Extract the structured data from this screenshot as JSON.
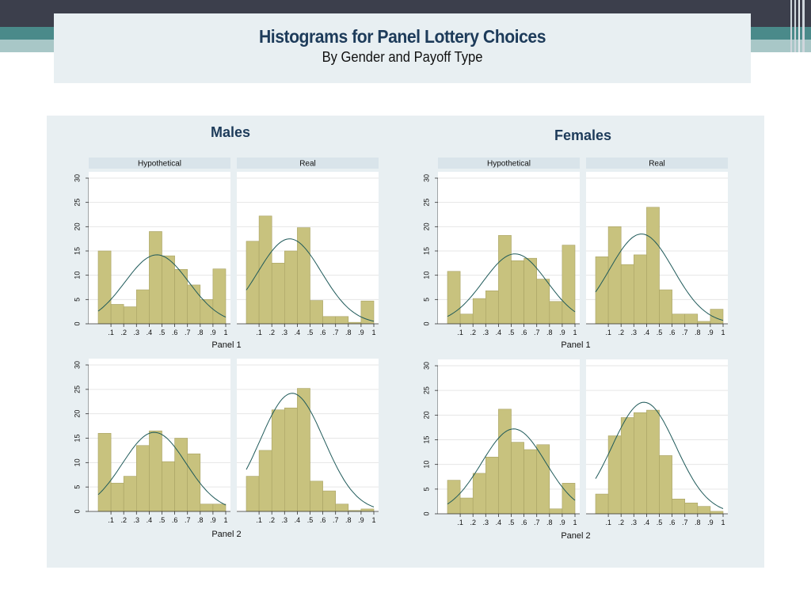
{
  "slide": {
    "title": "Histograms for Panel Lottery Choices",
    "subtitle": "By Gender and Payoff Type"
  },
  "colors": {
    "bar_fill": "#c8c27e",
    "bar_stroke": "#a8a264",
    "curve": "#1f5a5a",
    "strip": "#d9e4ea",
    "grid": "#e6e6e6"
  },
  "chart_data": [
    {
      "type": "bar",
      "title": "Males",
      "panels": [
        "Panel 1",
        "Panel 2"
      ],
      "strips": [
        "Hypothetical",
        "Real"
      ],
      "ylim": [
        0,
        30
      ],
      "yticks": [
        "0",
        "5",
        "10",
        "15",
        "20",
        "25",
        "30"
      ],
      "xticks": [
        ".1",
        ".2",
        ".3",
        ".4",
        ".5",
        ".6",
        ".7",
        ".8",
        ".9",
        "1"
      ],
      "histograms": [
        {
          "panel": "Panel 1",
          "type": "Hypothetical",
          "values": [
            15,
            4,
            3.5,
            7,
            19,
            14,
            11.2,
            8,
            5,
            11.3
          ],
          "normal": {
            "mean": 0.51,
            "peak": 14.2
          }
        },
        {
          "panel": "Panel 1",
          "type": "Real",
          "values": [
            17,
            22.2,
            12.5,
            15,
            19.8,
            4.8,
            1.5,
            1.5,
            0.3,
            4.7
          ],
          "normal": {
            "mean": 0.39,
            "peak": 17.5
          }
        },
        {
          "panel": "Panel 2",
          "type": "Hypothetical",
          "values": [
            16,
            5.8,
            7.2,
            13.5,
            16.5,
            10.2,
            15,
            11.8,
            1.5,
            1.5
          ],
          "normal": {
            "mean": 0.49,
            "peak": 16.2
          }
        },
        {
          "panel": "Panel 2",
          "type": "Real",
          "values": [
            7.2,
            12.5,
            20.8,
            21.2,
            25.2,
            6.2,
            4.2,
            1.5,
            0.2,
            0.5
          ],
          "normal": {
            "mean": 0.41,
            "peak": 24.2
          }
        }
      ]
    },
    {
      "type": "bar",
      "title": "Females",
      "panels": [
        "Panel 1",
        "Panel 2"
      ],
      "strips": [
        "Hypothetical",
        "Real"
      ],
      "ylim": [
        0,
        30
      ],
      "yticks": [
        "0",
        "5",
        "10",
        "15",
        "20",
        "25",
        "30"
      ],
      "xticks": [
        ".1",
        ".2",
        ".3",
        ".4",
        ".5",
        ".6",
        ".7",
        ".8",
        ".9",
        "1"
      ],
      "histograms": [
        {
          "panel": "Panel 1",
          "type": "Hypothetical",
          "values": [
            10.8,
            2,
            5.2,
            6.8,
            18.2,
            13,
            13.5,
            9.2,
            4.6,
            16.2
          ],
          "normal": {
            "mean": 0.58,
            "peak": 14.4
          }
        },
        {
          "panel": "Panel 1",
          "type": "Real",
          "values": [
            13.8,
            20,
            12.2,
            14.2,
            24,
            7,
            2,
            2,
            0.5,
            3
          ],
          "normal": {
            "mean": 0.41,
            "peak": 18.5
          }
        },
        {
          "panel": "Panel 2",
          "type": "Hypothetical",
          "values": [
            6.8,
            3.2,
            8.2,
            11.5,
            21.2,
            14.5,
            13,
            14,
            1,
            6.2
          ],
          "normal": {
            "mean": 0.57,
            "peak": 17.2
          }
        },
        {
          "panel": "Panel 2",
          "type": "Real",
          "values": [
            4,
            15.8,
            19.5,
            20.5,
            21,
            11.8,
            3,
            2.2,
            1.5,
            0.5
          ],
          "normal": {
            "mean": 0.43,
            "peak": 22.6
          }
        }
      ]
    }
  ]
}
